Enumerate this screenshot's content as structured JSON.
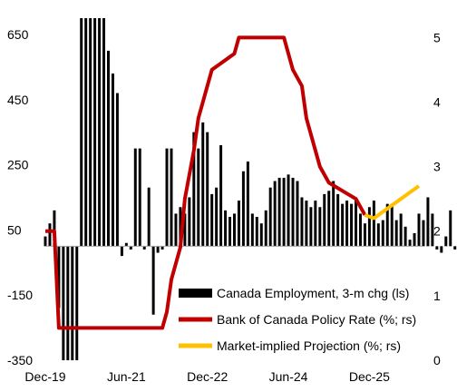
{
  "chart_data": {
    "type": "bar+line",
    "title": "",
    "x_tick_labels": [
      "Dec-19",
      "Jun-21",
      "Dec-22",
      "Jun-24",
      "Dec-25"
    ],
    "x_tick_dates": [
      "2019-12",
      "2021-06",
      "2022-12",
      "2024-06",
      "2025-12"
    ],
    "x_range": [
      "2019-12",
      "2026-11"
    ],
    "left_axis": {
      "ticks": [
        650,
        450,
        250,
        50,
        -150,
        -350
      ],
      "tick_labels": [
        "650",
        "450",
        "250",
        "50",
        "-150",
        "-350"
      ],
      "range": [
        -350,
        700
      ]
    },
    "right_axis": {
      "ticks": [
        5,
        4,
        3,
        2,
        1,
        0
      ],
      "tick_labels": [
        "5",
        "4",
        "3",
        "2",
        "1",
        "0"
      ],
      "range": [
        0,
        5.3
      ]
    },
    "grid": false,
    "legend_position": "bottom-right",
    "legend": [
      {
        "label": "Canada Employment, 3-m chg (ls)",
        "color": "#000000",
        "kind": "bar"
      },
      {
        "label": "Bank of Canada Policy Rate (%; rs)",
        "color": "#c00000",
        "kind": "line"
      },
      {
        "label": "Market-implied Projection (%; rs)",
        "color": "#ffc000",
        "kind": "line"
      }
    ],
    "series": [
      {
        "name": "Canada Employment, 3-m chg (ls)",
        "axis": "left",
        "kind": "bar",
        "color": "#000000",
        "start": "2019-12",
        "values": [
          30,
          70,
          110,
          -190,
          -350,
          -350,
          -350,
          -350,
          700,
          700,
          700,
          700,
          700,
          700,
          600,
          530,
          470,
          -30,
          10,
          -10,
          300,
          300,
          -10,
          180,
          -210,
          -20,
          -10,
          300,
          300,
          100,
          120,
          100,
          150,
          350,
          300,
          380,
          350,
          160,
          180,
          310,
          110,
          90,
          100,
          140,
          230,
          260,
          100,
          90,
          70,
          110,
          180,
          200,
          210,
          210,
          220,
          210,
          200,
          150,
          140,
          120,
          140,
          120,
          160,
          170,
          200,
          160,
          130,
          140,
          130,
          150,
          100,
          70,
          120,
          140,
          70,
          80,
          130,
          130,
          80,
          100,
          60,
          20,
          40,
          100,
          80,
          150,
          100,
          -10,
          -20,
          30,
          110,
          -10,
          -30,
          -30,
          50,
          90,
          160,
          150,
          120,
          100,
          40,
          -140
        ],
        "note": "employment values at the right edge (to Jan-2026); bars may clip at the top of the chart"
      },
      {
        "name": "Bank of Canada Policy Rate (%; rs)",
        "axis": "right",
        "kind": "line",
        "color": "#c00000",
        "points": [
          [
            "2019-12",
            2.0
          ],
          [
            "2020-02",
            2.0
          ],
          [
            "2020-03",
            0.5
          ],
          [
            "2022-02",
            0.5
          ],
          [
            "2022-03",
            0.75
          ],
          [
            "2022-04",
            1.25
          ],
          [
            "2022-06",
            1.75
          ],
          [
            "2022-07",
            2.5
          ],
          [
            "2022-09",
            3.25
          ],
          [
            "2022-10",
            3.75
          ],
          [
            "2022-12",
            4.25
          ],
          [
            "2023-01",
            4.5
          ],
          [
            "2023-06",
            4.75
          ],
          [
            "2023-07",
            5.0
          ],
          [
            "2024-05",
            5.0
          ],
          [
            "2024-06",
            4.75
          ],
          [
            "2024-07",
            4.5
          ],
          [
            "2024-09",
            4.25
          ],
          [
            "2024-10",
            3.75
          ],
          [
            "2024-12",
            3.25
          ],
          [
            "2025-01",
            3.0
          ],
          [
            "2025-03",
            2.75
          ],
          [
            "2025-09",
            2.5
          ],
          [
            "2025-11",
            2.25
          ]
        ]
      },
      {
        "name": "Market-implied Projection (%; rs)",
        "axis": "right",
        "kind": "line",
        "color": "#ffc000",
        "points": [
          [
            "2025-11",
            2.25
          ],
          [
            "2026-01",
            2.2
          ],
          [
            "2026-02",
            2.25
          ],
          [
            "2026-03",
            2.3
          ],
          [
            "2026-04",
            2.35
          ],
          [
            "2026-05",
            2.4
          ],
          [
            "2026-06",
            2.45
          ],
          [
            "2026-07",
            2.5
          ],
          [
            "2026-08",
            2.55
          ],
          [
            "2026-09",
            2.6
          ],
          [
            "2026-10",
            2.65
          ],
          [
            "2026-11",
            2.7
          ]
        ]
      }
    ]
  }
}
